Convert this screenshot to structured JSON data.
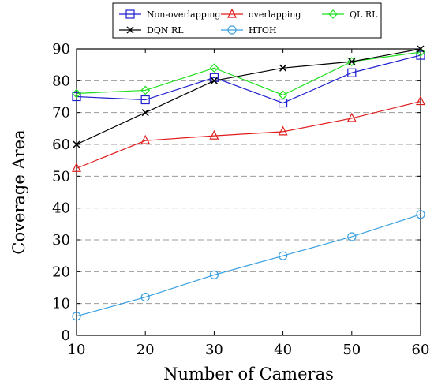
{
  "chart_data": {
    "type": "line",
    "x": [
      10,
      20,
      30,
      40,
      50,
      60
    ],
    "xlabel": "Number of Cameras",
    "ylabel": "Coverage Area",
    "xlim": [
      10,
      60
    ],
    "ylim": [
      0,
      90
    ],
    "xticks": [
      "10",
      "20",
      "30",
      "40",
      "50",
      "60"
    ],
    "yticks": [
      "0",
      "10",
      "20",
      "30",
      "40",
      "50",
      "60",
      "70",
      "80",
      "90"
    ],
    "grid": "horizontal dashed",
    "legend_position": "top",
    "series": [
      {
        "name": "Non-overlapping",
        "values": [
          75,
          74,
          81,
          73,
          82.5,
          88
        ],
        "color": "#1f1fd0",
        "marker": "square"
      },
      {
        "name": "overlapping",
        "values": [
          52.5,
          61.2,
          62.7,
          64,
          68.2,
          73.5
        ],
        "color": "#e01b1b",
        "marker": "triangle"
      },
      {
        "name": "QL RL",
        "values": [
          76,
          77,
          84,
          75.5,
          86,
          89
        ],
        "color": "#1ee01e",
        "marker": "diamond"
      },
      {
        "name": "DQN RL",
        "values": [
          60,
          70,
          80,
          84,
          86,
          90
        ],
        "color": "#000000",
        "marker": "cross"
      },
      {
        "name": "HTOH",
        "values": [
          6,
          12,
          19,
          25,
          31,
          38
        ],
        "color": "#3aa0e0",
        "marker": "circle"
      }
    ]
  }
}
